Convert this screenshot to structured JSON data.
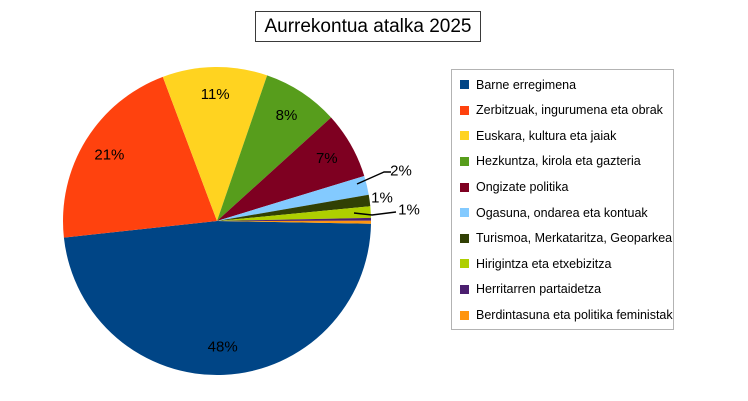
{
  "chart_data": {
    "type": "pie",
    "title": "Aurrekontua atalka 2025",
    "legend_position": "right",
    "background_color": "#ffffff",
    "slices": [
      {
        "name": "Barne erregimena",
        "value": 48,
        "label": "48%",
        "color": "#004586"
      },
      {
        "name": "Zerbitzuak, ingurumena eta obrak",
        "value": 21,
        "label": "21%",
        "color": "#FF420E"
      },
      {
        "name": "Euskara, kultura eta jaiak",
        "value": 11,
        "label": "11%",
        "color": "#FFD320"
      },
      {
        "name": "Hezkuntza, kirola eta gazteria",
        "value": 8,
        "label": "8%",
        "color": "#579D1C"
      },
      {
        "name": "Ongizate politika",
        "value": 7,
        "label": "7%",
        "color": "#7E0021"
      },
      {
        "name": "Ogasuna, ondarea eta kontuak",
        "value": 2,
        "label": "2%",
        "color": "#83CAFF"
      },
      {
        "name": "Turismoa, Merkataritza, Geoparkea",
        "value": 1.2,
        "label": "1%",
        "color": "#314004"
      },
      {
        "name": "Hirigintza eta etxebizitza",
        "value": 1.2,
        "label": "1%",
        "color": "#AECF00"
      },
      {
        "name": "Herritarren partaidetza",
        "value": 0.3,
        "label": "",
        "color": "#4B1F6F"
      },
      {
        "name": "Berdintasuna eta politika feministak",
        "value": 0.3,
        "label": "",
        "color": "#FF950E"
      }
    ]
  }
}
